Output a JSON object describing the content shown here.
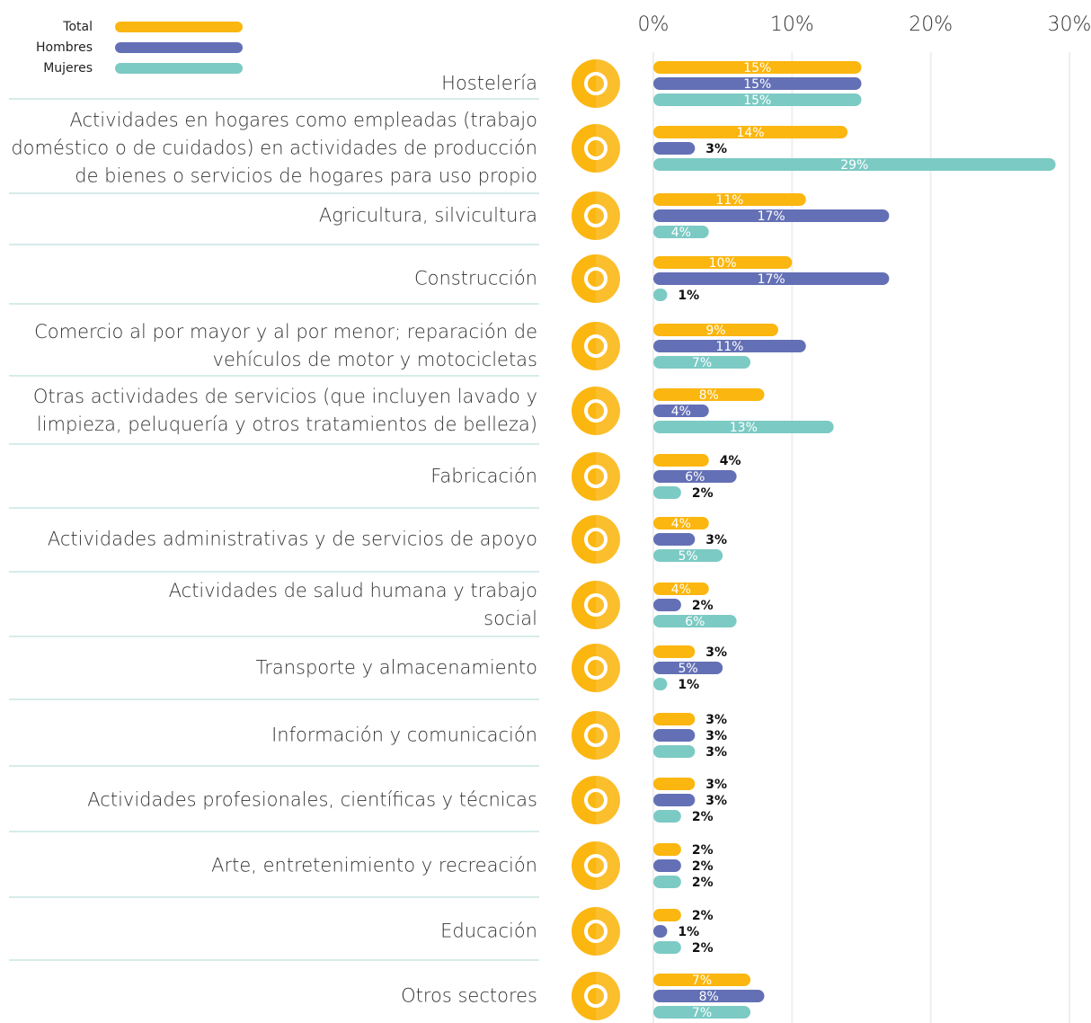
{
  "chart_data": {
    "type": "bar",
    "categories": [
      "Hostelería",
      "Actividades en hogares como empleadas (trabajo\ndoméstico o de cuidados) en actividades de producción\nde bienes o servicios de hogares para uso propio",
      "Agricultura, silvicultura",
      "Construcción",
      "Comercio al por mayor y al por menor; reparación de\nvehículos de motor y motocicletas",
      "Otras actividades de servicios (que incluyen lavado y\nlimpieza, peluquería y otros tratamientos de belleza)",
      "Fabricación",
      "Actividades administrativas y de servicios de apoyo",
      "Actividades de salud humana y trabajo\nsocial",
      "Transporte y almacenamiento",
      "Información y comunicación",
      "Actividades profesionales, científicas y técnicas",
      "Arte, entretenimiento y recreación",
      "Educación",
      "Otros sectores"
    ],
    "series": [
      {
        "name": "Total",
        "color": "#fbb60f",
        "values": [
          15,
          14,
          11,
          10,
          9,
          8,
          4,
          4,
          4,
          3,
          3,
          3,
          2,
          2,
          7
        ],
        "value_labels": [
          "15%",
          "14%",
          "11%",
          "10%",
          "9%",
          "8%",
          "4%",
          "4%",
          "4%",
          "3%",
          "3%",
          "3%",
          "2%",
          "2%",
          "7%"
        ]
      },
      {
        "name": "Hombres",
        "color": "#6470b5",
        "values": [
          15,
          3,
          17,
          17,
          11,
          4,
          6,
          3,
          2,
          5,
          3,
          3,
          2,
          1,
          8
        ],
        "value_labels": [
          "15%",
          "3%",
          "17%",
          "17%",
          "11%",
          "4%",
          "6%",
          "3%",
          "2%",
          "5%",
          "3%",
          "3%",
          "2%",
          "1%",
          "8%"
        ]
      },
      {
        "name": "Mujeres",
        "color": "#7ccac4",
        "values": [
          15,
          29,
          4,
          1,
          7,
          13,
          2,
          5,
          6,
          1,
          3,
          2,
          2,
          2,
          7
        ],
        "value_labels": [
          "15%",
          "29%",
          "4%",
          "1%",
          "7%",
          "13%",
          "2%",
          "5%",
          "6%",
          "1%",
          "3%",
          "2%",
          "2%",
          "2%",
          "7%"
        ]
      }
    ],
    "xlim": [
      0,
      30
    ],
    "xticks": [
      {
        "value": 0,
        "label": "0%"
      },
      {
        "value": 10,
        "label": "10%"
      },
      {
        "value": 20,
        "label": "20%"
      },
      {
        "value": 30,
        "label": "30%"
      }
    ],
    "grid": true,
    "icon_color": "#fbb60f"
  }
}
